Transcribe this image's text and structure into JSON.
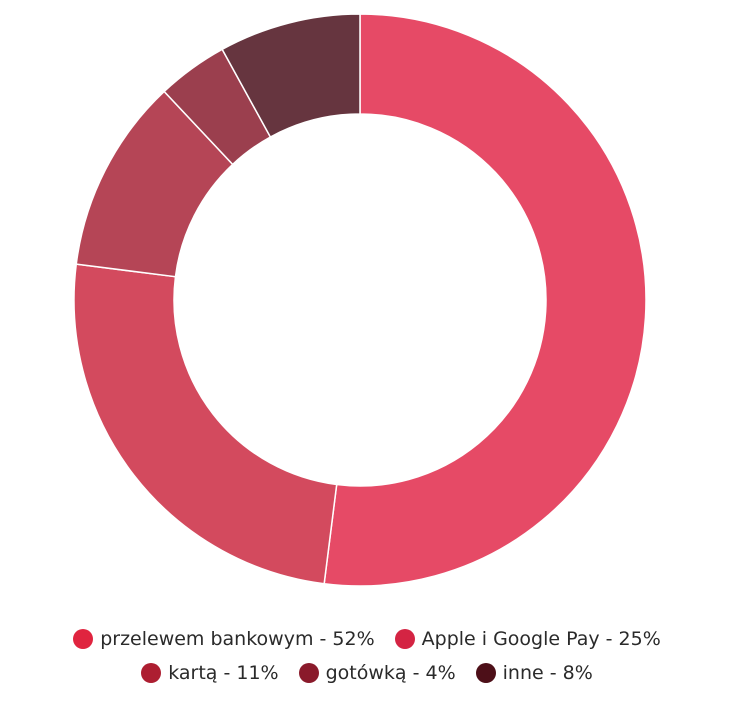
{
  "chart_data": {
    "type": "pie",
    "donut": true,
    "slices": [
      {
        "label": "przelewem bankowym",
        "value": 52,
        "color": "#e64a66",
        "legend_color": "#e0243f",
        "legend_text": "przelewem bankowym - 52%"
      },
      {
        "label": "Apple i Google Pay",
        "value": 25,
        "color": "#d34a5e",
        "legend_color": "#d42443",
        "legend_text": "Apple i Google Pay - 25%"
      },
      {
        "label": "kartą",
        "value": 11,
        "color": "#b54556",
        "legend_color": "#ad1e31",
        "legend_text": "kartą - 11%"
      },
      {
        "label": "gotówką",
        "value": 4,
        "color": "#9b3f4e",
        "legend_color": "#8a1a2b",
        "legend_text": "gotówką - 4%"
      },
      {
        "label": "inne",
        "value": 8,
        "color": "#66353f",
        "legend_color": "#4d0f18",
        "legend_text": "inne - 8%"
      }
    ],
    "legend_placement": "bottom"
  }
}
